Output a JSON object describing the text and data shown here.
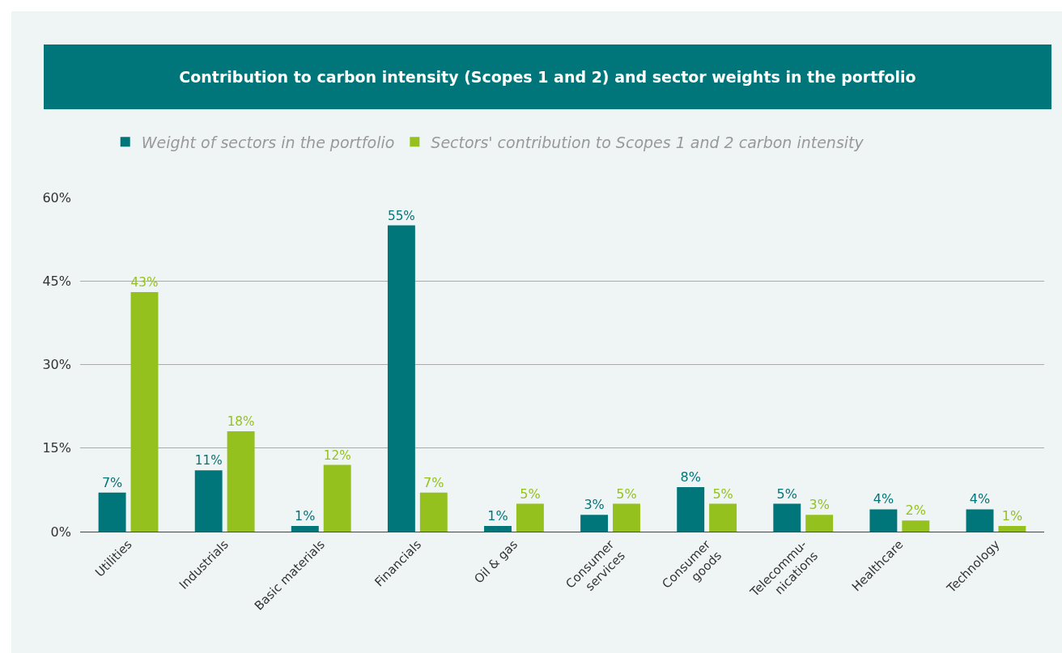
{
  "chart_data": {
    "type": "bar",
    "title": "Contribution to carbon intensity (Scopes 1 and 2) and sector weights in the portfolio",
    "categories": [
      "Utilities",
      "Industrials",
      "Basic materials",
      "Financials",
      "Oil & gas",
      "Consumer\nservices",
      "Consumer\ngoods",
      "Telecommu-\nnications",
      "Healthcare",
      "Technology"
    ],
    "series": [
      {
        "name": "Weight of sectors in the portfolio",
        "color": "#00767a",
        "values": [
          7,
          11,
          1,
          55,
          1,
          3,
          8,
          5,
          4,
          4
        ],
        "value_labels": [
          "7%",
          "11%",
          "1%",
          "55%",
          "1%",
          "3%",
          "8%",
          "5%",
          "4%",
          "4%"
        ]
      },
      {
        "name": "Sectors' contribution to Scopes 1 and 2 carbon intensity",
        "color": "#95c11f",
        "values": [
          43,
          18,
          12,
          7,
          5,
          5,
          5,
          3,
          2,
          1
        ],
        "value_labels": [
          "43%",
          "18%",
          "12%",
          "7%",
          "5%",
          "5%",
          "5%",
          "3%",
          "2%",
          "1%"
        ]
      }
    ],
    "ylim": [
      0,
      60
    ],
    "yticks": [
      {
        "value": 0,
        "label": "0%"
      },
      {
        "value": 15,
        "label": "15%"
      },
      {
        "value": 30,
        "label": "30%"
      },
      {
        "value": 45,
        "label": "45%"
      },
      {
        "value": 60,
        "label": "60%"
      }
    ],
    "grid": "y",
    "legend": "top left"
  }
}
